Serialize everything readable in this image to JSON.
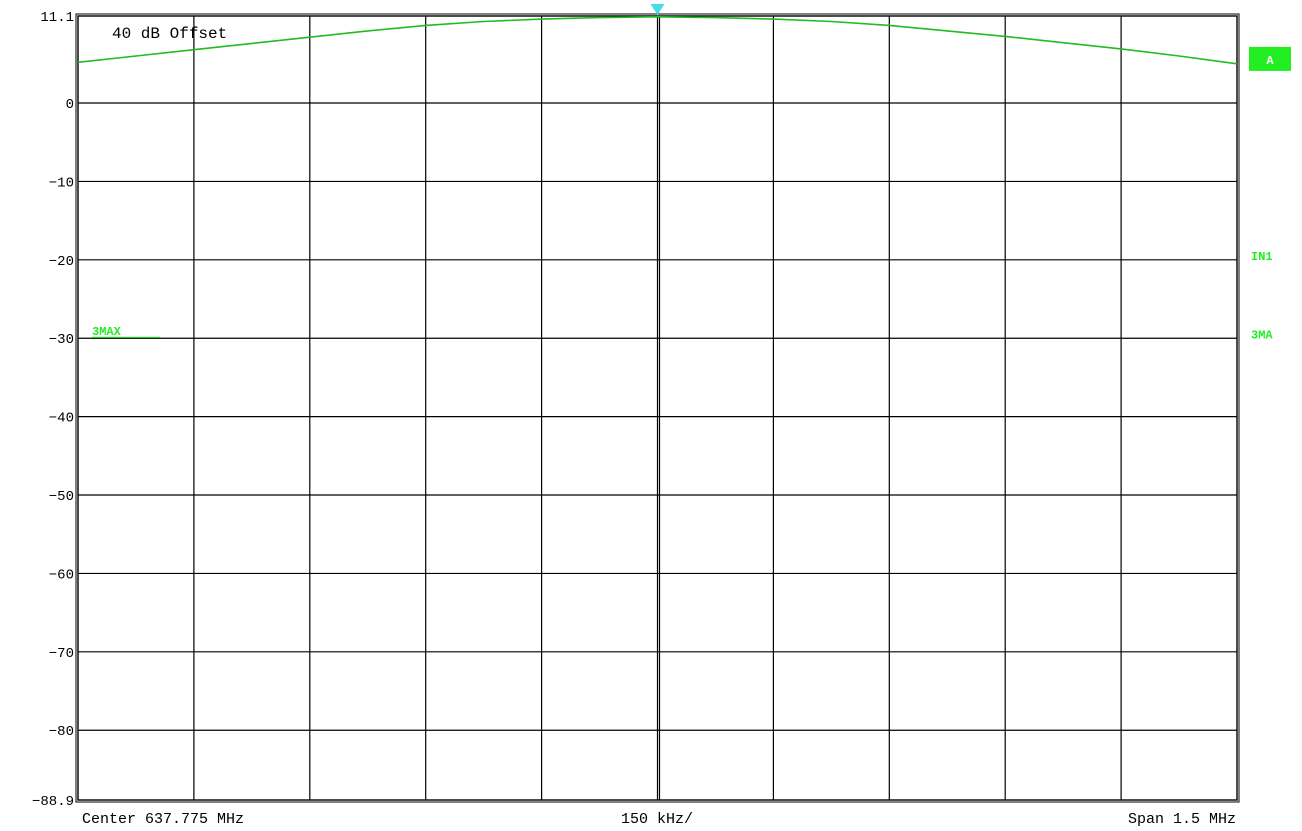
{
  "chart_data": {
    "type": "line",
    "title": "",
    "xlabel": "",
    "ylabel": "",
    "offset_label": "40 dB Offset",
    "xlim": [
      637.025,
      638.525
    ],
    "ylim": [
      -88.9,
      11.1
    ],
    "yticks": [
      {
        "value": 11.1,
        "label": "11.1"
      },
      {
        "value": 0,
        "label": "0"
      },
      {
        "value": -10,
        "label": "-10"
      },
      {
        "value": -20,
        "label": "-20"
      },
      {
        "value": -30,
        "label": "-30"
      },
      {
        "value": -40,
        "label": "-40"
      },
      {
        "value": -50,
        "label": "-50"
      },
      {
        "value": -60,
        "label": "-60"
      },
      {
        "value": -70,
        "label": "-70"
      },
      {
        "value": -80,
        "label": "-80"
      },
      {
        "value": -88.9,
        "label": "-88.9"
      }
    ],
    "x_divisions": 10,
    "grid": true,
    "footer": {
      "center": "Center 637.775 MHz",
      "per_div": "150 kHz/",
      "span": "Span 1.5 MHz"
    },
    "trace_color": "#22bb22",
    "marker_color": "#44ddee",
    "label_color": "#22ee22",
    "marker": {
      "x": 637.775,
      "y": 11.1
    },
    "display_line": {
      "label": "3MAX",
      "value": -30
    },
    "side_labels": [
      {
        "text": "A",
        "value": 5.5,
        "boxed": true
      },
      {
        "text": "IN1",
        "value": -19.5,
        "boxed": false
      },
      {
        "text": "3MA",
        "value": -29.5,
        "boxed": false
      }
    ],
    "series": [
      {
        "x": [
          637.025,
          637.1,
          637.175,
          637.25,
          637.325,
          637.4,
          637.475,
          637.55,
          637.625,
          637.7,
          637.775,
          637.85,
          637.925,
          638.0,
          638.075,
          638.15,
          638.225,
          638.3,
          638.375,
          638.45,
          638.525
        ],
        "values": [
          5.2,
          6.0,
          6.8,
          7.6,
          8.4,
          9.2,
          9.9,
          10.4,
          10.7,
          10.9,
          11.0,
          10.9,
          10.7,
          10.4,
          9.9,
          9.2,
          8.5,
          7.7,
          6.9,
          6.0,
          5.0
        ]
      }
    ]
  }
}
